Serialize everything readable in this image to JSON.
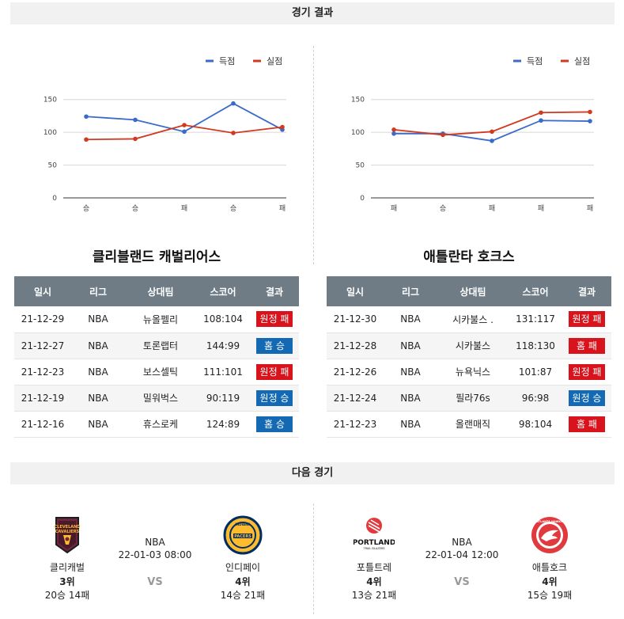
{
  "sections": {
    "results_title": "경기 결과",
    "next_title": "다음 경기"
  },
  "table_headers": {
    "date": "일시",
    "league": "리그",
    "opponent": "상대팀",
    "score": "스코어",
    "result": "결과"
  },
  "colors": {
    "scored": "#3a6bc9",
    "allowed": "#d2391f",
    "loss_badge": "#d9131c",
    "win_badge": "#1369b3",
    "header_bg": "#6f7c86"
  },
  "chart_data": [
    {
      "type": "line",
      "categories": [
        "승",
        "승",
        "패",
        "승",
        "패"
      ],
      "series": [
        {
          "name": "득점",
          "values": [
            124,
            119,
            101,
            144,
            104
          ]
        },
        {
          "name": "실점",
          "values": [
            89,
            90,
            111,
            99,
            108
          ]
        }
      ],
      "y_ticks": [
        "0",
        "50",
        "100",
        "150"
      ],
      "ylim": [
        0,
        175
      ],
      "grid": true,
      "legend": "top-right"
    },
    {
      "type": "line",
      "categories": [
        "패",
        "승",
        "패",
        "패",
        "패"
      ],
      "series": [
        {
          "name": "득점",
          "values": [
            98,
            98,
            87,
            118,
            117
          ]
        },
        {
          "name": "실점",
          "values": [
            104,
            96,
            101,
            130,
            131
          ]
        }
      ],
      "y_ticks": [
        "0",
        "50",
        "100",
        "150"
      ],
      "ylim": [
        0,
        175
      ],
      "grid": true,
      "legend": "top-right"
    }
  ],
  "teams": [
    {
      "title": "클리블랜드 캐벌리어스",
      "games": [
        {
          "date": "21-12-29",
          "league": "NBA",
          "opponent": "뉴올펠리",
          "score": "108:104",
          "result": "원정 패",
          "kind": "loss"
        },
        {
          "date": "21-12-27",
          "league": "NBA",
          "opponent": "토론랩터",
          "score": "144:99",
          "result": "홈 승",
          "kind": "win"
        },
        {
          "date": "21-12-23",
          "league": "NBA",
          "opponent": "보스셀틱",
          "score": "111:101",
          "result": "원정 패",
          "kind": "loss"
        },
        {
          "date": "21-12-19",
          "league": "NBA",
          "opponent": "밀워벅스",
          "score": "90:119",
          "result": "원정 승",
          "kind": "win"
        },
        {
          "date": "21-12-16",
          "league": "NBA",
          "opponent": "휴스로케",
          "score": "124:89",
          "result": "홈 승",
          "kind": "win"
        }
      ]
    },
    {
      "title": "애틀란타 호크스",
      "games": [
        {
          "date": "21-12-30",
          "league": "NBA",
          "opponent": "시카불스 .",
          "score": "131:117",
          "result": "원정 패",
          "kind": "loss"
        },
        {
          "date": "21-12-28",
          "league": "NBA",
          "opponent": "시카불스",
          "score": "118:130",
          "result": "홈 패",
          "kind": "loss"
        },
        {
          "date": "21-12-26",
          "league": "NBA",
          "opponent": "뉴욕닉스",
          "score": "101:87",
          "result": "원정 패",
          "kind": "loss"
        },
        {
          "date": "21-12-24",
          "league": "NBA",
          "opponent": "필라76s",
          "score": "96:98",
          "result": "원정 승",
          "kind": "win"
        },
        {
          "date": "21-12-23",
          "league": "NBA",
          "opponent": "올랜매직",
          "score": "98:104",
          "result": "홈 패",
          "kind": "loss"
        }
      ]
    }
  ],
  "next_games": [
    {
      "league": "NBA",
      "time": "22-01-03 08:00",
      "vs": "VS",
      "home": {
        "name": "클리캐벌",
        "rank": "3위",
        "record": "20승 14패",
        "logo": "cavaliers-logo-icon"
      },
      "away": {
        "name": "인디페이",
        "rank": "4위",
        "record": "14승 21패",
        "logo": "pacers-logo-icon"
      }
    },
    {
      "league": "NBA",
      "time": "22-01-04 12:00",
      "vs": "VS",
      "home": {
        "name": "포틀트레",
        "rank": "4위",
        "record": "13승 21패",
        "logo": "trail-blazers-logo-icon"
      },
      "away": {
        "name": "애틀호크",
        "rank": "4위",
        "record": "15승 19패",
        "logo": "hawks-logo-icon"
      }
    }
  ]
}
